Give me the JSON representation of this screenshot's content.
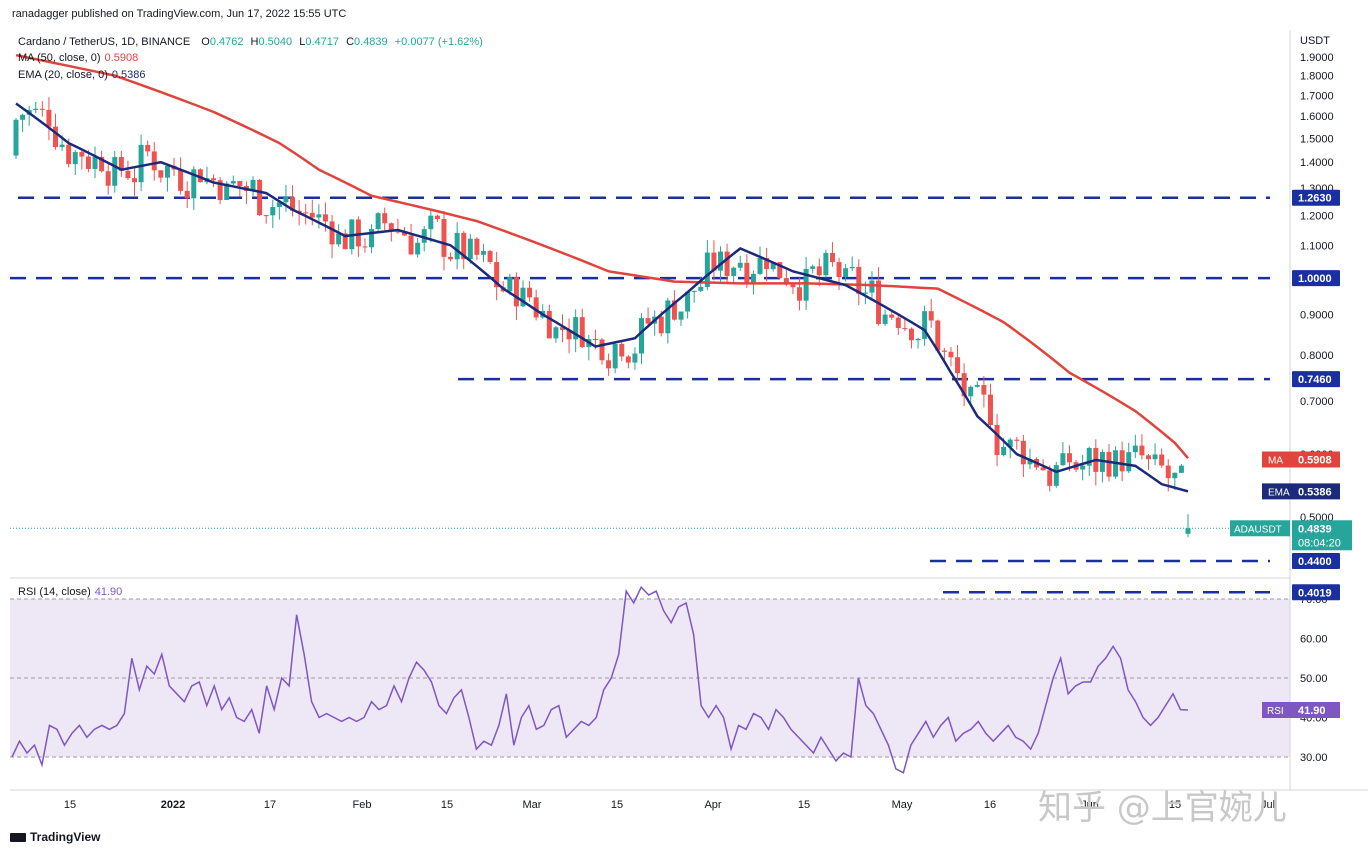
{
  "header": {
    "published": "ranadagger published on TradingView.com, Jun 17, 2022 15:55 UTC"
  },
  "legend": {
    "symbol": "Cardano / TetherUS, 1D, BINANCE",
    "o_label": "O",
    "o_value": "0.4762",
    "h_label": "H",
    "h_value": "0.5040",
    "l_label": "L",
    "l_value": "0.4717",
    "c_label": "C",
    "c_value": "0.4839",
    "change": "+0.0077 (+1.62%)",
    "ma_label": "MA (50, close, 0)",
    "ma_value": "0.5908",
    "ema_label": "EMA (20, close, 0)",
    "ema_value": "0.5386",
    "rsi_label": "RSI (14, close)",
    "rsi_value": "41.90"
  },
  "colors": {
    "up": "#26a69a",
    "down": "#ef5350",
    "ma": "#e0443d",
    "ema": "#1b2a7a",
    "level": "#1a2fa0",
    "rsi": "#7e57c2",
    "rsi_band": "#ede7f6",
    "price_badge": "#26a69a"
  },
  "footer": {
    "brand": "TradingView"
  },
  "watermark": "知乎 @上官婉儿",
  "chart_data": [
    {
      "type": "candlestick",
      "title": "Cardano / TetherUS, 1D, BINANCE",
      "currency": "USDT",
      "ylim": [
        0.38,
        1.95
      ],
      "y_scale": "log",
      "y_ticks": [
        "1.9000",
        "1.8000",
        "1.7000",
        "1.6000",
        "1.5000",
        "1.4000",
        "1.3000",
        "1.2000",
        "1.1000",
        "1.0000",
        "0.9000",
        "0.8000",
        "0.7000",
        "0.6000",
        "0.5000"
      ],
      "x_ticks": [
        "15",
        "2022",
        "17",
        "Feb",
        "15",
        "Mar",
        "15",
        "Apr",
        "15",
        "May",
        "16",
        "Jun",
        "15",
        "Jul"
      ],
      "ohlc_last": {
        "open": 0.4762,
        "high": 0.504,
        "low": 0.4717,
        "close": 0.4839
      },
      "horizontal_levels": [
        {
          "label": "1.2630",
          "value": 1.263
        },
        {
          "label": "1.0000",
          "value": 1.0
        },
        {
          "label": "0.7460",
          "value": 0.746
        },
        {
          "label": "0.4400",
          "value": 0.44
        },
        {
          "label": "0.4019",
          "value": 0.4019
        }
      ],
      "price_labels": [
        {
          "name": "MA",
          "value": "0.5908"
        },
        {
          "name": "EMA",
          "value": "0.5386"
        },
        {
          "name": "ADAUSDT",
          "value": "0.4839",
          "countdown": "08:04:20"
        }
      ],
      "ma_path": [
        [
          0,
          1.91
        ],
        [
          15,
          1.8
        ],
        [
          30,
          1.62
        ],
        [
          40,
          1.48
        ],
        [
          46,
          1.37
        ],
        [
          54,
          1.27
        ],
        [
          63,
          1.22
        ],
        [
          70,
          1.18
        ],
        [
          80,
          1.1
        ],
        [
          90,
          1.02
        ],
        [
          100,
          0.99
        ],
        [
          110,
          0.985
        ],
        [
          120,
          0.985
        ],
        [
          130,
          0.98
        ],
        [
          140,
          0.97
        ],
        [
          150,
          0.88
        ],
        [
          160,
          0.76
        ],
        [
          170,
          0.68
        ],
        [
          176,
          0.62
        ],
        [
          178,
          0.593
        ]
      ],
      "ema_path": [
        [
          0,
          1.66
        ],
        [
          8,
          1.48
        ],
        [
          16,
          1.37
        ],
        [
          22,
          1.4
        ],
        [
          30,
          1.32
        ],
        [
          38,
          1.28
        ],
        [
          42,
          1.22
        ],
        [
          50,
          1.13
        ],
        [
          58,
          1.15
        ],
        [
          66,
          1.1
        ],
        [
          74,
          0.97
        ],
        [
          80,
          0.9
        ],
        [
          88,
          0.82
        ],
        [
          94,
          0.84
        ],
        [
          102,
          0.96
        ],
        [
          110,
          1.09
        ],
        [
          118,
          1.02
        ],
        [
          126,
          0.98
        ],
        [
          132,
          0.92
        ],
        [
          138,
          0.86
        ],
        [
          142,
          0.76
        ],
        [
          146,
          0.67
        ],
        [
          152,
          0.6
        ],
        [
          158,
          0.57
        ],
        [
          164,
          0.59
        ],
        [
          170,
          0.58
        ],
        [
          174,
          0.55
        ],
        [
          178,
          0.5386
        ]
      ]
    },
    {
      "type": "line",
      "title": "RSI (14, close)",
      "ylim": [
        25,
        75
      ],
      "y_ticks": [
        "70.00",
        "60.00",
        "50.00",
        "40.00",
        "30.00"
      ],
      "bands": [
        30,
        50,
        70
      ],
      "values": [
        30,
        34,
        31,
        33,
        28,
        38,
        37,
        33,
        36,
        38,
        35,
        37,
        38,
        37,
        38,
        41,
        55,
        47,
        53,
        51,
        56,
        48,
        46,
        44,
        48,
        49,
        43,
        48,
        42,
        45,
        40,
        39,
        42,
        36,
        48,
        42,
        50,
        48,
        66,
        56,
        44,
        40,
        41,
        40,
        39,
        40,
        39,
        40,
        44,
        42,
        43,
        48,
        44,
        50,
        54,
        52,
        49,
        43,
        41,
        45,
        47,
        40,
        32,
        34,
        33,
        38,
        46,
        33,
        40,
        43,
        37,
        38,
        42,
        43,
        35,
        37,
        39,
        38,
        40,
        47,
        50,
        56,
        72,
        69,
        73,
        71,
        72,
        67,
        64,
        68,
        69,
        61,
        43,
        40,
        43,
        40,
        32,
        38,
        37,
        41,
        40,
        37,
        42,
        40,
        37,
        35,
        33,
        31,
        35,
        32,
        29,
        31,
        30,
        50,
        43,
        41,
        37,
        33,
        27,
        26,
        33,
        36,
        39,
        35,
        38,
        40,
        34,
        36,
        37,
        39,
        36,
        34,
        36,
        38,
        35,
        34,
        32,
        36,
        43,
        50,
        55,
        46,
        48,
        49,
        49,
        53,
        55,
        58,
        55,
        47,
        44,
        40,
        38,
        40,
        43,
        46,
        42,
        41.9
      ]
    }
  ]
}
